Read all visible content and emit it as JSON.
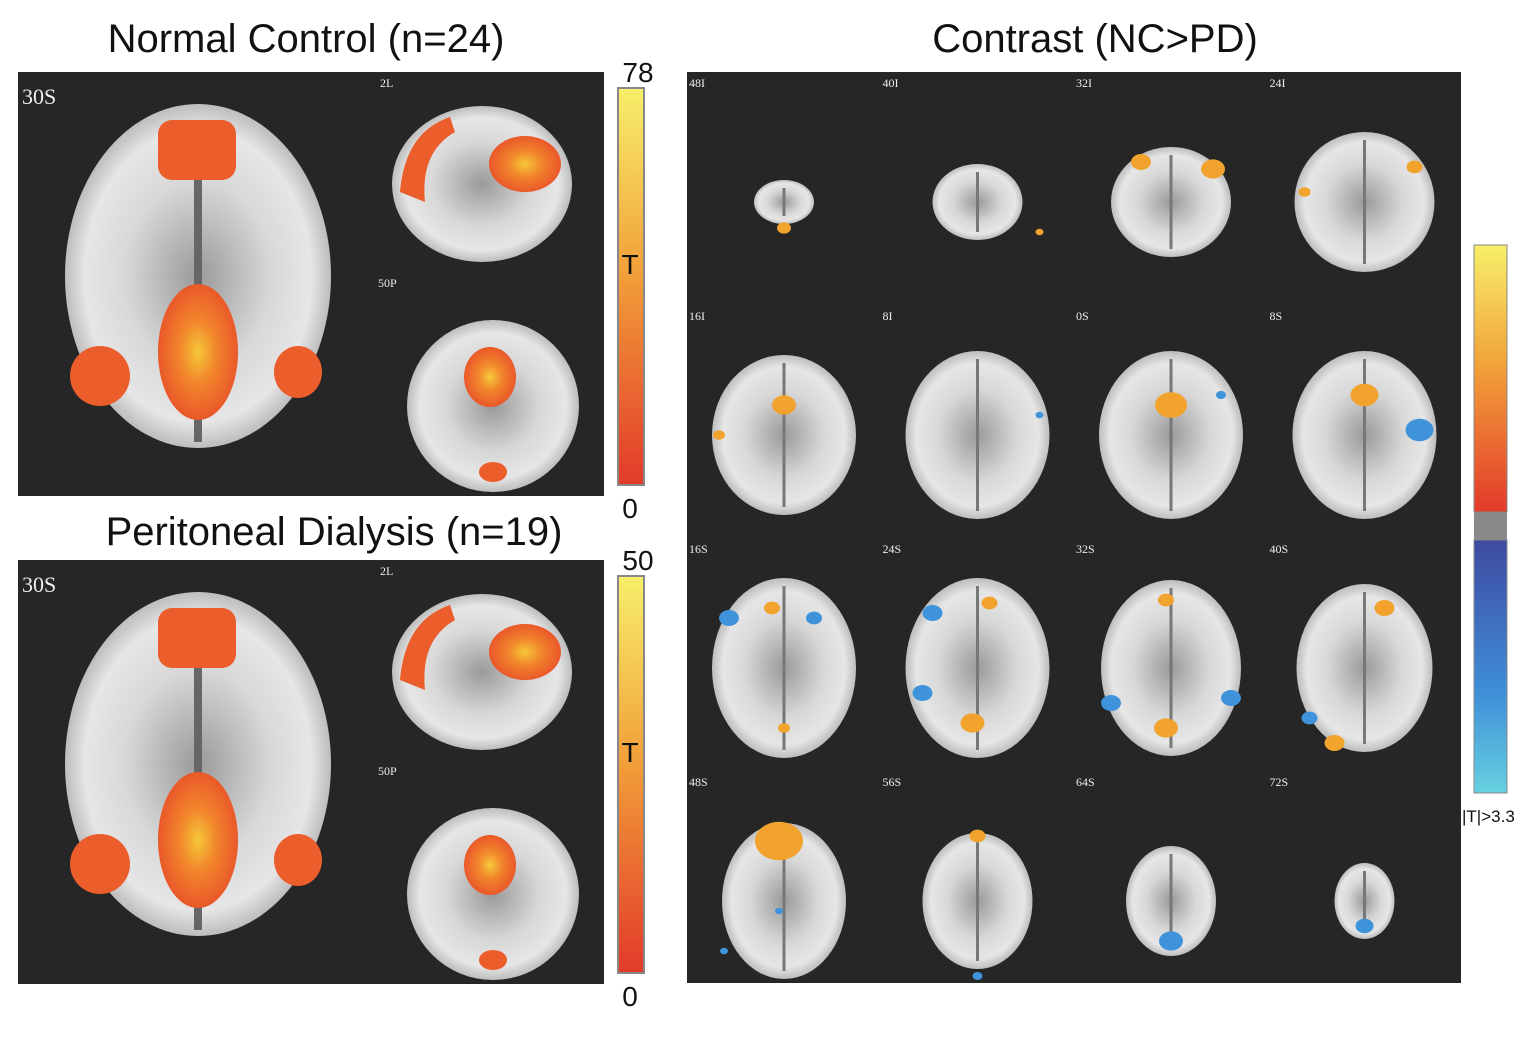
{
  "normal_control": {
    "title": "Normal Control (n=24)",
    "axial_label": "30S",
    "sagittal_label": "2L",
    "coronal_label": "50P",
    "colorbar": {
      "max": 78,
      "label": "T",
      "min": 0
    }
  },
  "peritoneal_dialysis": {
    "title": "Peritoneal Dialysis (n=19)",
    "axial_label": "30S",
    "sagittal_label": "2L",
    "coronal_label": "50P",
    "colorbar": {
      "max": 50,
      "label": "T",
      "min": 0
    }
  },
  "contrast": {
    "title": "Contrast (NC>PD)",
    "slices": [
      "48I",
      "40I",
      "32I",
      "24I",
      "16I",
      "8I",
      "0S",
      "8S",
      "16S",
      "24S",
      "32S",
      "40S",
      "48S",
      "56S",
      "64S",
      "72S"
    ],
    "colorbar": {
      "threshold_label": "|T|>3.3"
    }
  }
}
